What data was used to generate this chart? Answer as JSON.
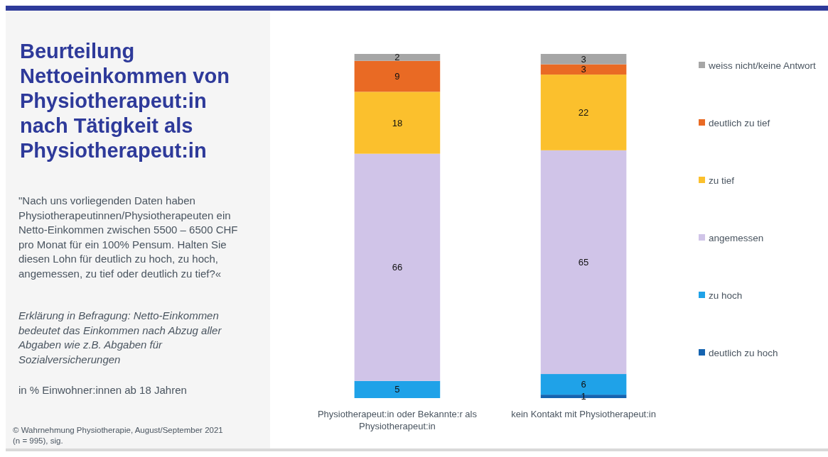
{
  "chart_data": {
    "type": "bar",
    "stacked": true,
    "title": "Beurteilung Nettoeinkommen von Physiotherapeut:in nach Tätigkeit als Physiotherapeut:in",
    "subtitle": "\"Nach uns vorliegenden Daten haben Physiotherapeutinnen/Physiotherapeuten ein Netto-Einkommen zwischen 5500 – 6500 CHF pro Monat für ein 100% Pensum. Halten Sie diesen Lohn für deutlich zu hoch, zu hoch, angemessen, zu tief oder deutlich zu tief?«",
    "annotations": [
      "Erklärung in Befragung: Netto-Einkommen bedeutet das Einkommen nach Abzug aller Abgaben wie z.B. Abgaben für Sozialversicherungen",
      "in % Einwohner:innen ab 18 Jahren",
      "© Wahrnehmung Physiotherapie, August/September 2021 (n = 995), sig."
    ],
    "categories": [
      "Physiotherapeut:in oder Bekannte:r als Physiotherapeut:in",
      "kein Kontakt mit Physiotherapeut:in"
    ],
    "series": [
      {
        "name": "deutlich zu hoch",
        "color": "#1563b0",
        "values": [
          null,
          1
        ]
      },
      {
        "name": "zu hoch",
        "color": "#1fa2e8",
        "values": [
          5,
          6
        ]
      },
      {
        "name": "angemessen",
        "color": "#d0c4e8",
        "values": [
          66,
          65
        ]
      },
      {
        "name": "zu tief",
        "color": "#fbc02d",
        "values": [
          18,
          22
        ]
      },
      {
        "name": "deutlich zu tief",
        "color": "#e96a24",
        "values": [
          9,
          3
        ]
      },
      {
        "name": "weiss nicht/keine Antwort",
        "color": "#a6a6a6",
        "values": [
          2,
          3
        ]
      }
    ],
    "ylim": [
      0,
      100
    ],
    "data_labels": true,
    "legend": "right",
    "tick_labels": "x"
  }
}
